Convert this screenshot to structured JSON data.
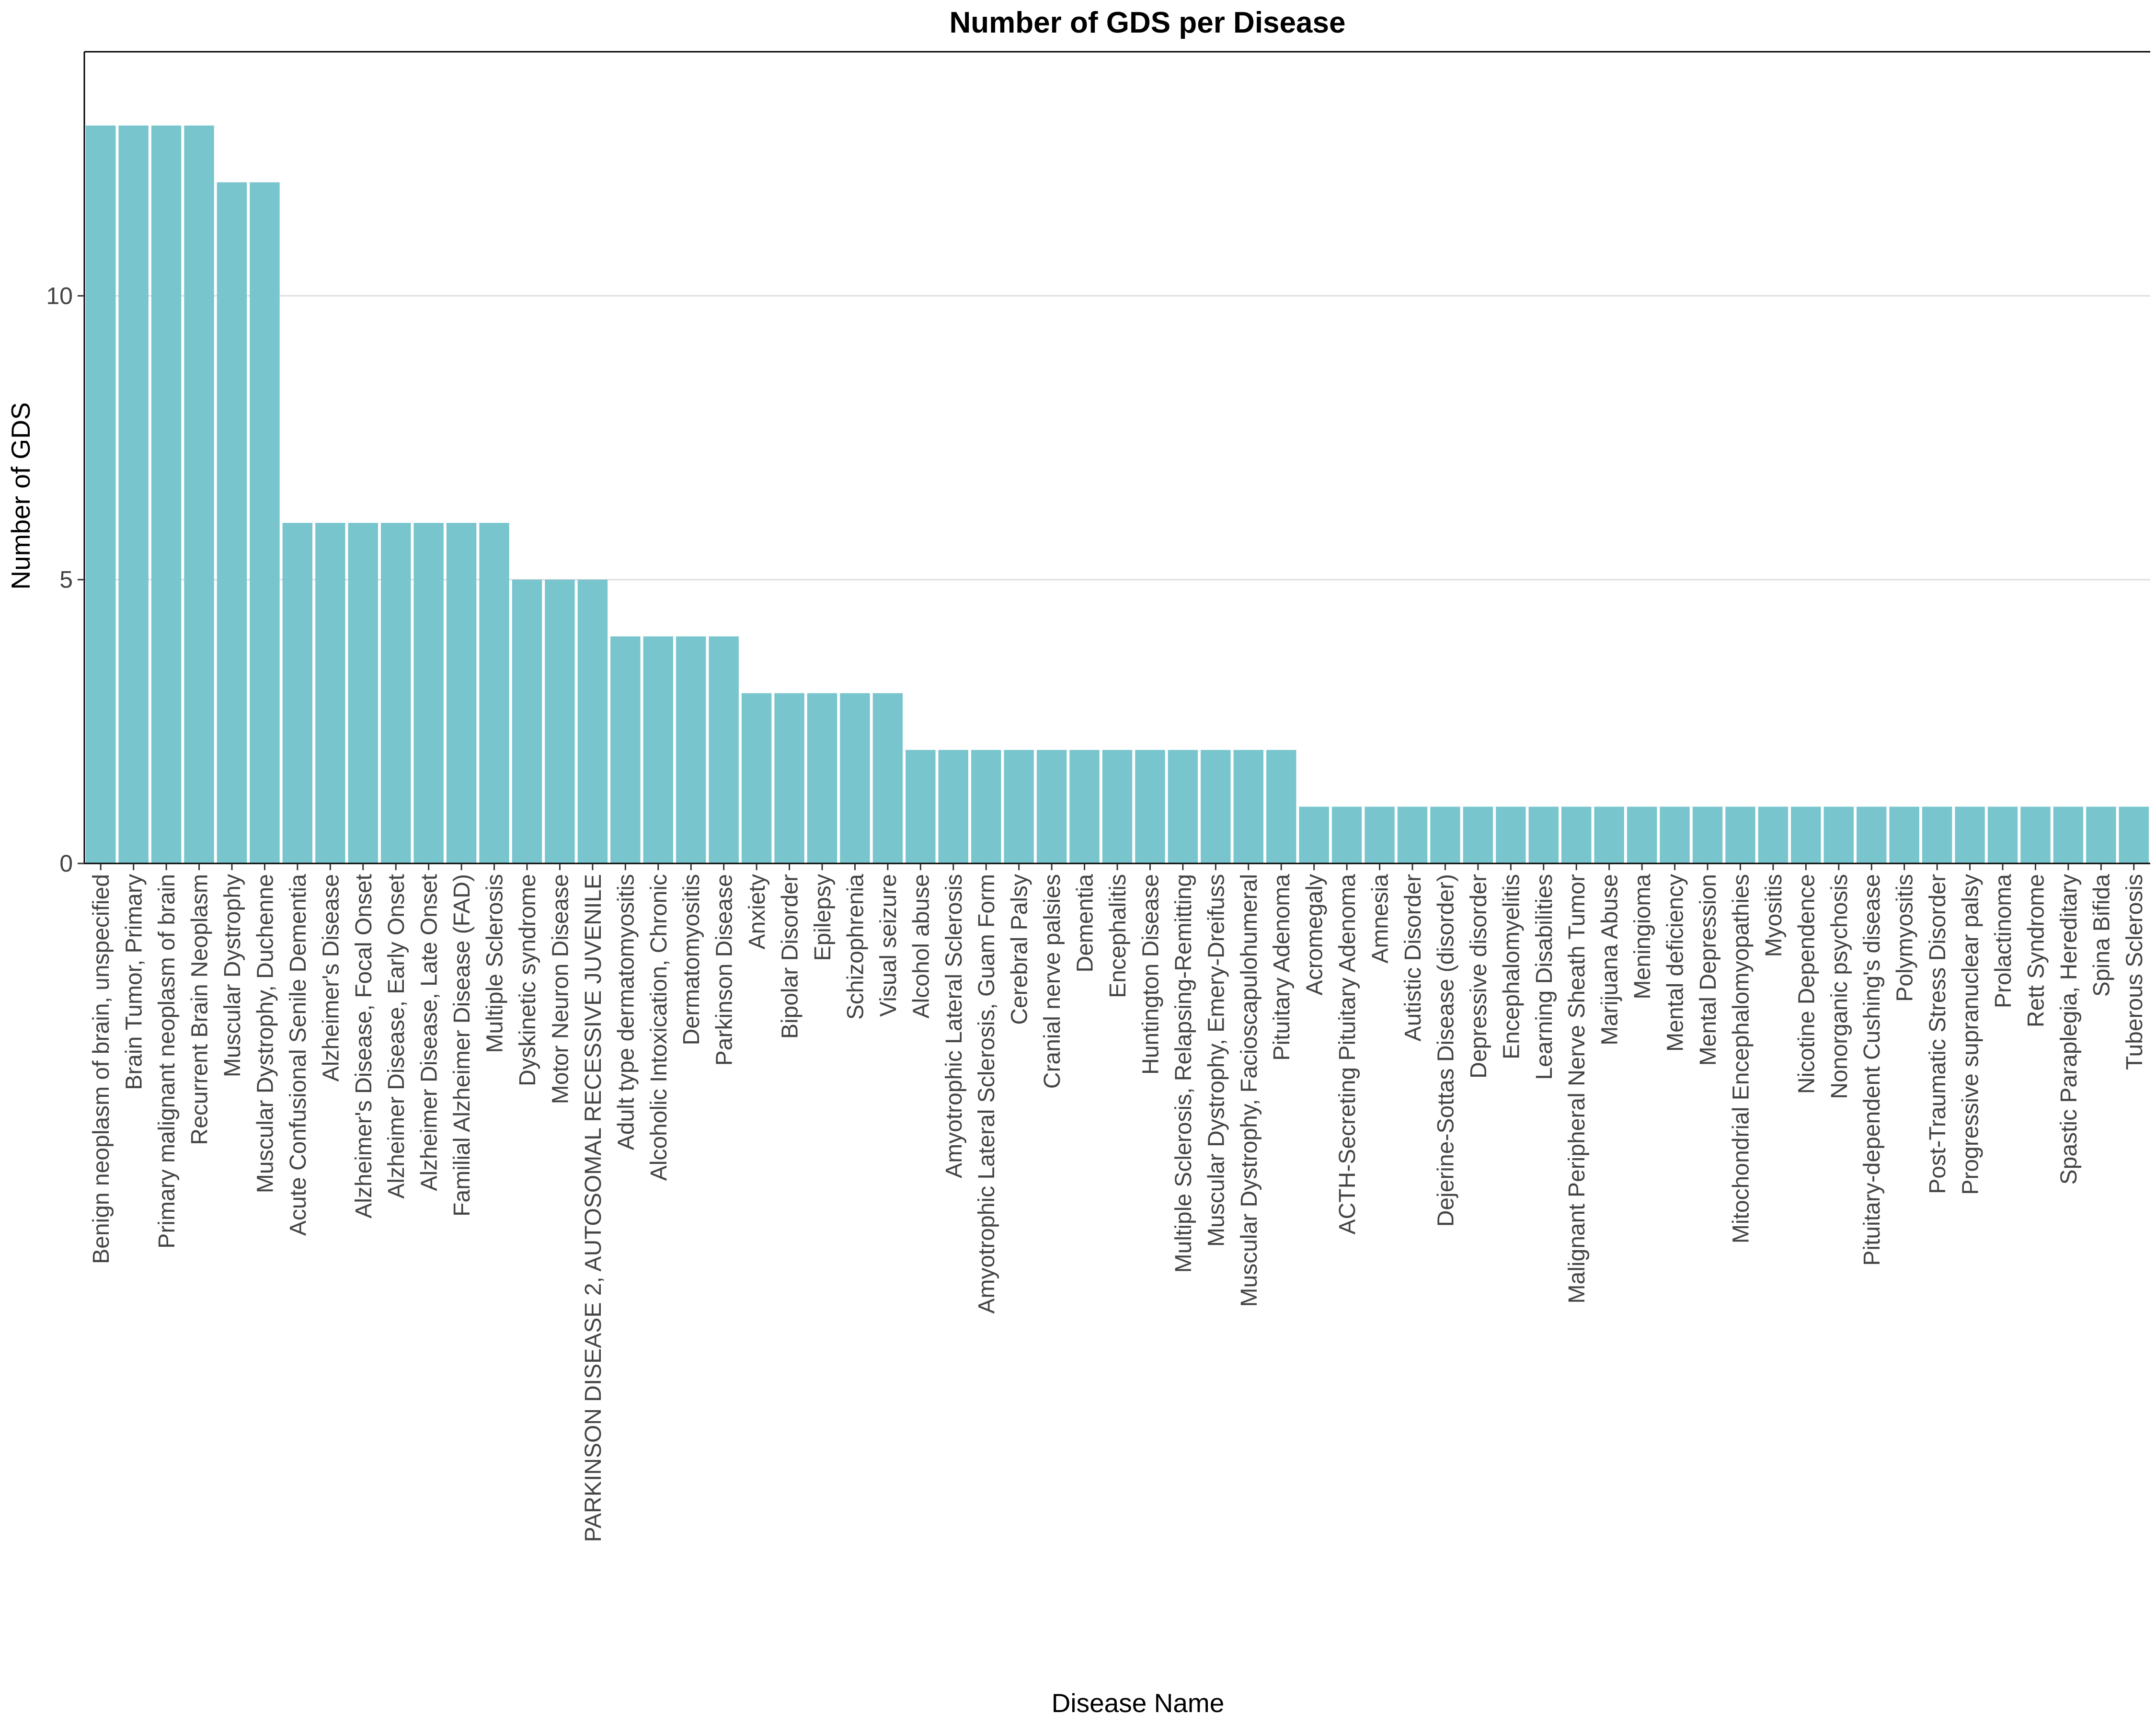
{
  "chart_data": {
    "type": "bar",
    "title": "Number of GDS per Disease",
    "xlabel": "Disease Name",
    "ylabel": "Number of GDS",
    "ylim": [
      0,
      14.3
    ],
    "yticks": [
      0,
      5,
      10
    ],
    "grid": "horizontal major lines",
    "bar_color": "#78C5CD",
    "categories": [
      "Benign neoplasm of brain, unspecified",
      "Brain Tumor, Primary",
      "Primary malignant neoplasm of brain",
      "Recurrent Brain Neoplasm",
      "Muscular Dystrophy",
      "Muscular Dystrophy, Duchenne",
      "Acute Confusional Senile Dementia",
      "Alzheimer's Disease",
      "Alzheimer's Disease, Focal Onset",
      "Alzheimer Disease, Early Onset",
      "Alzheimer Disease, Late Onset",
      "Familial Alzheimer Disease (FAD)",
      "Multiple Sclerosis",
      "Dyskinetic syndrome",
      "Motor Neuron Disease",
      "PARKINSON DISEASE 2, AUTOSOMAL RECESSIVE JUVENILE",
      "Adult type dermatomyositis",
      "Alcoholic Intoxication, Chronic",
      "Dermatomyositis",
      "Parkinson Disease",
      "Anxiety",
      "Bipolar Disorder",
      "Epilepsy",
      "Schizophrenia",
      "Visual seizure",
      "Alcohol abuse",
      "Amyotrophic Lateral Sclerosis",
      "Amyotrophic Lateral Sclerosis, Guam Form",
      "Cerebral Palsy",
      "Cranial nerve palsies",
      "Dementia",
      "Encephalitis",
      "Huntington Disease",
      "Multiple Sclerosis, Relapsing-Remitting",
      "Muscular Dystrophy, Emery-Dreifuss",
      "Muscular Dystrophy, Facioscapulohumeral",
      "Pituitary Adenoma",
      "Acromegaly",
      "ACTH-Secreting Pituitary Adenoma",
      "Amnesia",
      "Autistic Disorder",
      "Dejerine-Sottas Disease (disorder)",
      "Depressive disorder",
      "Encephalomyelitis",
      "Learning Disabilities",
      "Malignant Peripheral Nerve Sheath Tumor",
      "Marijuana Abuse",
      "Meningioma",
      "Mental deficiency",
      "Mental Depression",
      "Mitochondrial Encephalomyopathies",
      "Myositis",
      "Nicotine Dependence",
      "Nonorganic psychosis",
      "Pituitary-dependent Cushing's disease",
      "Polymyositis",
      "Post-Traumatic Stress Disorder",
      "Progressive supranuclear palsy",
      "Prolactinoma",
      "Rett Syndrome",
      "Spastic Paraplegia, Hereditary",
      "Spina Bifida",
      "Tuberous Sclerosis"
    ],
    "values": [
      13,
      13,
      13,
      13,
      12,
      12,
      6,
      6,
      6,
      6,
      6,
      6,
      6,
      5,
      5,
      5,
      4,
      4,
      4,
      4,
      3,
      3,
      3,
      3,
      3,
      2,
      2,
      2,
      2,
      2,
      2,
      2,
      2,
      2,
      2,
      2,
      2,
      1,
      1,
      1,
      1,
      1,
      1,
      1,
      1,
      1,
      1,
      1,
      1,
      1,
      1,
      1,
      1,
      1,
      1,
      1,
      1,
      1,
      1,
      1,
      1,
      1,
      1
    ]
  }
}
